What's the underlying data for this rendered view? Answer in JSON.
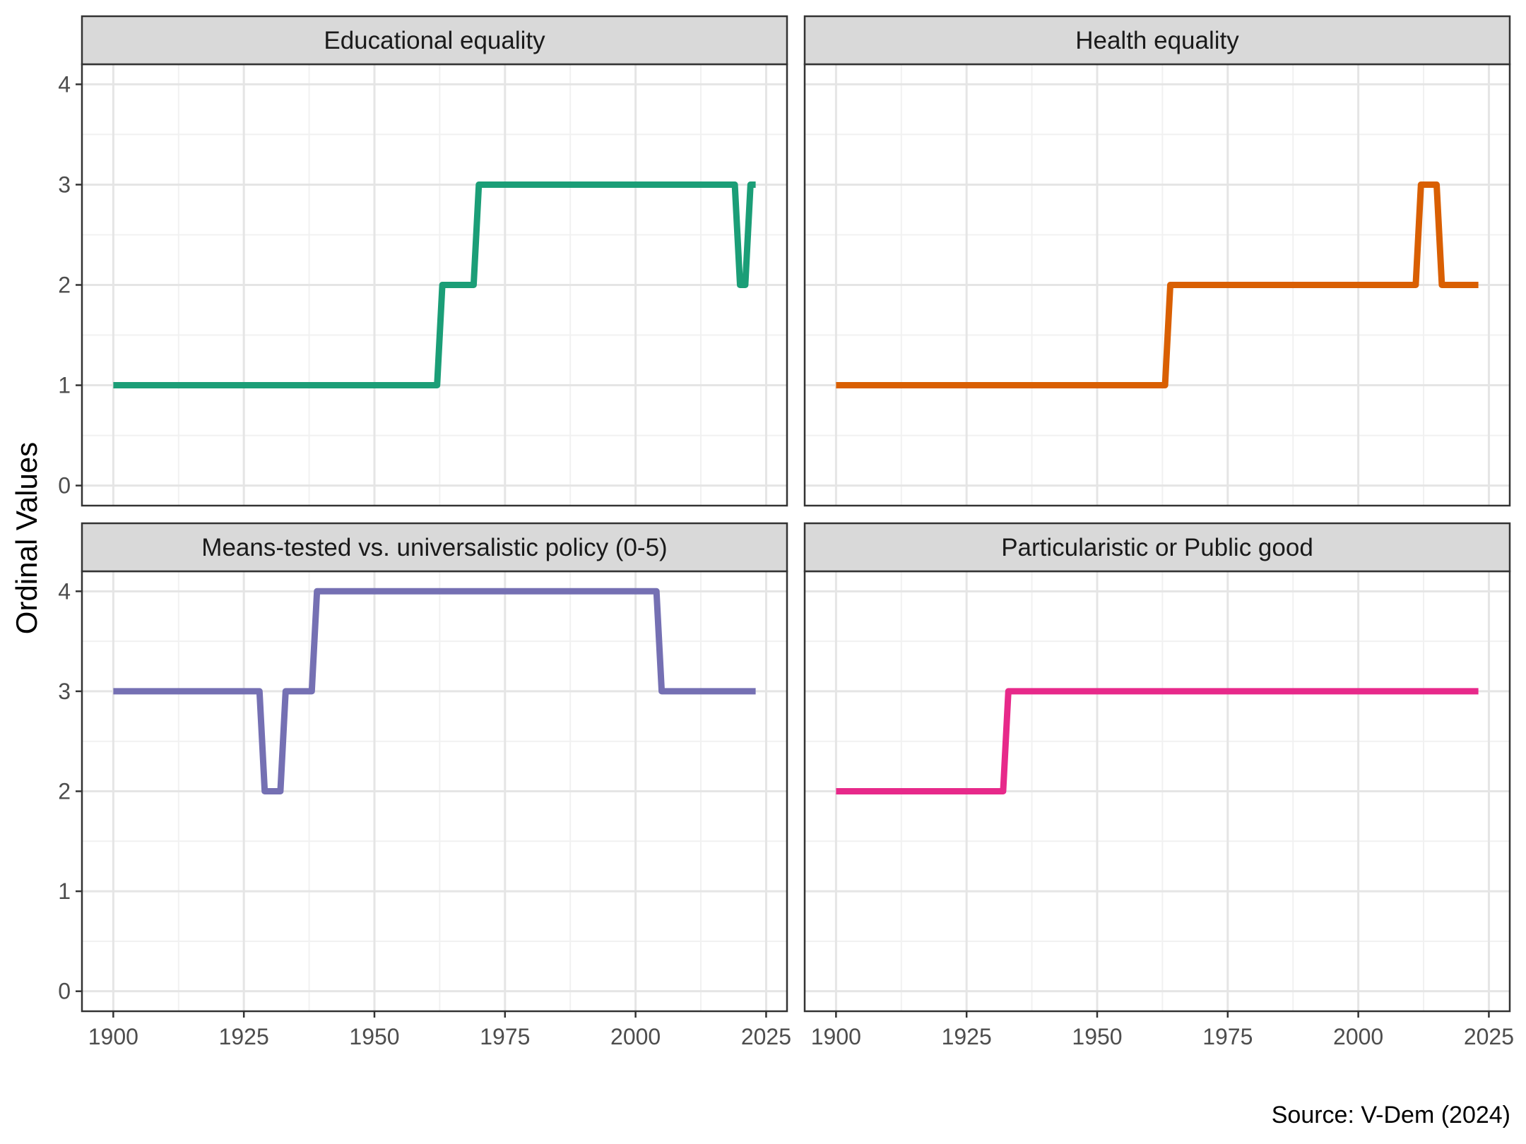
{
  "chart_data": {
    "type": "line",
    "ylabel": "Ordinal Values",
    "caption": "Source: V-Dem (2024)",
    "xlim": [
      1894,
      2029
    ],
    "ylim": [
      -0.2,
      4.2
    ],
    "x_ticks": [
      1900,
      1925,
      1950,
      1975,
      2000,
      2025
    ],
    "y_ticks": [
      0,
      1,
      2,
      3,
      4
    ],
    "grid": true,
    "panels": [
      {
        "title": "Educational equality",
        "color": "#1b9e77",
        "points": [
          [
            1900,
            1
          ],
          [
            1962,
            1
          ],
          [
            1963,
            2
          ],
          [
            1969,
            2
          ],
          [
            1970,
            3
          ],
          [
            2019,
            3
          ],
          [
            2020,
            2
          ],
          [
            2021,
            2
          ],
          [
            2022,
            3
          ],
          [
            2023,
            3
          ]
        ]
      },
      {
        "title": "Health equality",
        "color": "#d95f02",
        "points": [
          [
            1900,
            1
          ],
          [
            1963,
            1
          ],
          [
            1964,
            2
          ],
          [
            2011,
            2
          ],
          [
            2012,
            3
          ],
          [
            2015,
            3
          ],
          [
            2016,
            2
          ],
          [
            2023,
            2
          ]
        ]
      },
      {
        "title": "Means-tested vs. universalistic policy (0-5)",
        "color": "#7570b3",
        "points": [
          [
            1900,
            3
          ],
          [
            1928,
            3
          ],
          [
            1929,
            2
          ],
          [
            1932,
            2
          ],
          [
            1933,
            3
          ],
          [
            1938,
            3
          ],
          [
            1939,
            4
          ],
          [
            2004,
            4
          ],
          [
            2005,
            3
          ],
          [
            2023,
            3
          ]
        ]
      },
      {
        "title": "Particularistic or Public good",
        "color": "#e7298a",
        "points": [
          [
            1900,
            2
          ],
          [
            1932,
            2
          ],
          [
            1933,
            3
          ],
          [
            2023,
            3
          ]
        ]
      }
    ]
  }
}
